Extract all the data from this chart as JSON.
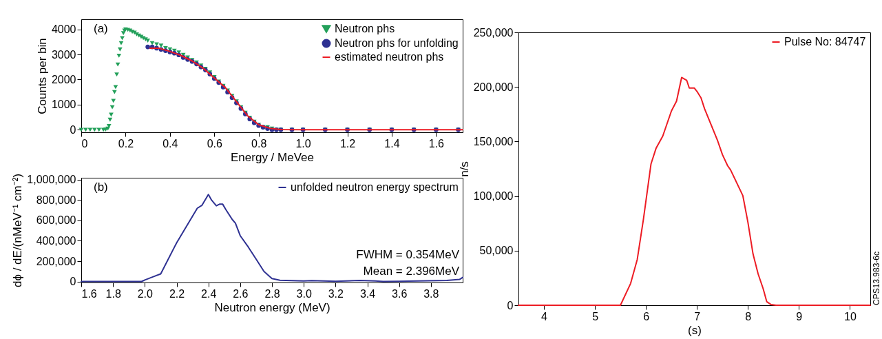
{
  "chart_data": [
    {
      "type": "line",
      "xlabel": "Energy / MeVee",
      "ylabel": "Counts per bin",
      "annotations": [
        "(a)"
      ],
      "legend": "top right",
      "xlim": [
        0,
        1.72
      ],
      "xticks": [
        0,
        0.2,
        0.4,
        0.6,
        0.8,
        {
          "value": 1,
          "label": "1.0"
        },
        1.2,
        1.4,
        1.6
      ],
      "ylim": [
        -100,
        4400
      ],
      "yticks": [
        0,
        1000,
        2000,
        3000,
        4000
      ],
      "series": [
        {
          "name": "Neutron phs",
          "type": "scatter",
          "marker": "triangle",
          "color": "#23a05a",
          "x": [
            0,
            0.02,
            0.04,
            0.06,
            0.08,
            0.1,
            0.11,
            0.12,
            0.125,
            0.13,
            0.135,
            0.14,
            0.145,
            0.15,
            0.155,
            0.16,
            0.165,
            0.17,
            0.175,
            0.18,
            0.185,
            0.19,
            0.195,
            0.2,
            0.21,
            0.22,
            0.23,
            0.24,
            0.25,
            0.26,
            0.27,
            0.28,
            0.29,
            0.3,
            0.32,
            0.34,
            0.36,
            0.38,
            0.4,
            0.42,
            0.44,
            0.46,
            0.48,
            0.5,
            0.52,
            0.54,
            0.56,
            0.58,
            0.6,
            0.62,
            0.64,
            0.66,
            0.68,
            0.7,
            0.72,
            0.74,
            0.76,
            0.78,
            0.8,
            0.82,
            0.84,
            0.86,
            0.88,
            0.9,
            0.95,
            1.0,
            1.1,
            1.2,
            1.3,
            1.4,
            1.5,
            1.6,
            1.7
          ],
          "values": [
            0,
            0,
            0,
            0,
            0,
            0,
            10,
            50,
            150,
            400,
            600,
            900,
            1150,
            1500,
            1700,
            2200,
            2600,
            2950,
            3200,
            3450,
            3650,
            3850,
            3950,
            4000,
            3980,
            3950,
            3900,
            3870,
            3800,
            3750,
            3700,
            3650,
            3600,
            3550,
            3450,
            3400,
            3350,
            3250,
            3200,
            3150,
            3080,
            2980,
            2880,
            2780,
            2680,
            2560,
            2430,
            2280,
            2100,
            1920,
            1750,
            1560,
            1350,
            1130,
            900,
            680,
            480,
            320,
            200,
            100,
            100,
            50,
            0,
            0,
            0,
            0,
            0,
            0,
            0,
            0,
            0,
            0,
            0
          ]
        },
        {
          "name": "Neutron phs for unfolding",
          "type": "scatter",
          "marker": "circle",
          "color": "#2e3192",
          "x": [
            0.3,
            0.32,
            0.34,
            0.36,
            0.38,
            0.4,
            0.42,
            0.44,
            0.46,
            0.48,
            0.5,
            0.52,
            0.54,
            0.56,
            0.58,
            0.6,
            0.62,
            0.64,
            0.66,
            0.68,
            0.7,
            0.72,
            0.74,
            0.76,
            0.78,
            0.8,
            0.82,
            0.84,
            0.86,
            0.88,
            0.9,
            0.95,
            1.0,
            1.1,
            1.2,
            1.3,
            1.4,
            1.5,
            1.6,
            1.7
          ],
          "values": [
            3300,
            3300,
            3250,
            3200,
            3150,
            3100,
            3050,
            2980,
            2880,
            2800,
            2720,
            2620,
            2500,
            2380,
            2220,
            2040,
            1880,
            1700,
            1500,
            1280,
            1070,
            850,
            630,
            430,
            280,
            170,
            100,
            50,
            0,
            0,
            0,
            0,
            0,
            0,
            0,
            0,
            0,
            0,
            0,
            0
          ]
        },
        {
          "name": "estimated neutron phs",
          "type": "line",
          "color": "#ed1c24",
          "x": [
            0.31,
            0.35,
            0.4,
            0.45,
            0.5,
            0.55,
            0.6,
            0.65,
            0.7,
            0.75,
            0.8,
            0.85,
            0.9,
            1.0,
            1.2,
            1.4,
            1.6,
            1.72
          ],
          "values": [
            3250,
            3250,
            3120,
            2960,
            2740,
            2450,
            2060,
            1680,
            1120,
            560,
            200,
            60,
            10,
            0,
            0,
            0,
            0,
            0
          ]
        }
      ]
    },
    {
      "type": "line",
      "xlabel": "Neutron energy (MeV)",
      "ylabel": "dϕ / dE/(nMeV⁻¹ cm⁻²)",
      "annotations": [
        "(b)",
        "FWHM = 0.354MeV",
        "Mean = 2.396MeV"
      ],
      "legend": "top right",
      "xlim": [
        1.6,
        4.0
      ],
      "xticks": [
        1.6,
        1.8,
        {
          "value": 2,
          "label": "2.0"
        },
        2.2,
        2.4,
        2.6,
        2.8,
        {
          "value": 3,
          "label": "3.0"
        },
        3.2,
        3.4,
        3.6,
        3.8
      ],
      "ylim": [
        -10000,
        1020000
      ],
      "yticks": [
        0,
        {
          "value": 200000,
          "label": "200,000"
        },
        {
          "value": 400000,
          "label": "400,000"
        },
        {
          "value": 600000,
          "label": "600,000"
        },
        {
          "value": 800000,
          "label": "800,000"
        },
        {
          "value": 1000000,
          "label": "1,000,000"
        }
      ],
      "series": [
        {
          "name": "unfolded neutron energy spectrum",
          "type": "line",
          "color": "#2e3192",
          "x": [
            1.6,
            1.8,
            1.98,
            2.0,
            2.05,
            2.1,
            2.2,
            2.33,
            2.36,
            2.4,
            2.42,
            2.45,
            2.47,
            2.49,
            2.51,
            2.55,
            2.57,
            2.6,
            2.65,
            2.7,
            2.75,
            2.8,
            2.85,
            3.0,
            3.05,
            3.2,
            3.35,
            3.45,
            3.5,
            3.6,
            3.9,
            3.98,
            4.0
          ],
          "values": [
            0,
            0,
            0,
            15000,
            45000,
            75000,
            380000,
            720000,
            750000,
            855000,
            800000,
            744000,
            760000,
            760000,
            707000,
            610000,
            573000,
            451000,
            341000,
            220000,
            98000,
            29000,
            12000,
            5000,
            8000,
            2000,
            10000,
            5000,
            0,
            2000,
            10000,
            20000,
            40000
          ]
        }
      ]
    },
    {
      "type": "line",
      "xlabel": "(s)",
      "ylabel": "n/s",
      "annotations": [
        "CPS13.983-6c"
      ],
      "legend": "top right",
      "xlim": [
        3.5,
        10.4
      ],
      "xticks": [
        4,
        5,
        6,
        7,
        8,
        9,
        10
      ],
      "ylim": [
        0,
        250000
      ],
      "yticks": [
        0,
        {
          "value": 50000,
          "label": "50,000"
        },
        {
          "value": 100000,
          "label": "100,000"
        },
        {
          "value": 150000,
          "label": "150,000"
        },
        {
          "value": 200000,
          "label": "200,000"
        },
        {
          "value": 250000,
          "label": "250,000"
        }
      ],
      "series": [
        {
          "name": "Pulse No: 84747",
          "type": "line",
          "color": "#ed1c24",
          "x": [
            3.5,
            5.5,
            5.7,
            5.83,
            5.95,
            6.0,
            6.1,
            6.2,
            6.33,
            6.5,
            6.6,
            6.7,
            6.8,
            6.85,
            6.95,
            7.0,
            7.08,
            7.15,
            7.4,
            7.5,
            7.6,
            7.66,
            7.9,
            8.0,
            8.1,
            8.2,
            8.3,
            8.37,
            8.45,
            8.55,
            10.4
          ],
          "values": [
            0,
            0,
            20000,
            42000,
            78500,
            95600,
            129600,
            144000,
            155000,
            178000,
            187000,
            208700,
            206000,
            199000,
            199000,
            196000,
            190000,
            180000,
            151500,
            138000,
            128000,
            124000,
            100500,
            76000,
            47000,
            28700,
            15000,
            3200,
            700,
            0,
            0
          ]
        }
      ]
    }
  ]
}
